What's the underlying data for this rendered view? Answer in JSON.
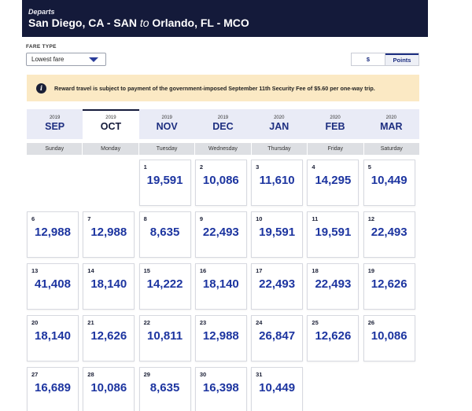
{
  "header": {
    "departs_label": "Departs",
    "origin": "San Diego, CA - SAN",
    "to": "to",
    "destination": "Orlando, FL - MCO"
  },
  "fare_type": {
    "label": "FARE TYPE",
    "selected": "Lowest fare"
  },
  "currency_toggle": {
    "dollars": "$",
    "points": "Points",
    "active": "Points"
  },
  "notice": {
    "icon": "info-icon",
    "text": "Reward travel is subject to payment of the government-imposed September 11th Security Fee of $5.60 per one-way trip."
  },
  "months": [
    {
      "year": "2019",
      "month": "SEP"
    },
    {
      "year": "2019",
      "month": "OCT"
    },
    {
      "year": "2019",
      "month": "NOV"
    },
    {
      "year": "2019",
      "month": "DEC"
    },
    {
      "year": "2020",
      "month": "JAN"
    },
    {
      "year": "2020",
      "month": "FEB"
    },
    {
      "year": "2020",
      "month": "MAR"
    }
  ],
  "active_month": "OCT",
  "weekdays": [
    "Sunday",
    "Monday",
    "Tuesday",
    "Wednesday",
    "Thursday",
    "Friday",
    "Saturday"
  ],
  "weeks": [
    [
      null,
      null,
      {
        "day": "1",
        "points": "19,591"
      },
      {
        "day": "2",
        "points": "10,086"
      },
      {
        "day": "3",
        "points": "11,610"
      },
      {
        "day": "4",
        "points": "14,295"
      },
      {
        "day": "5",
        "points": "10,449"
      }
    ],
    [
      {
        "day": "6",
        "points": "12,988"
      },
      {
        "day": "7",
        "points": "12,988"
      },
      {
        "day": "8",
        "points": "8,635"
      },
      {
        "day": "9",
        "points": "22,493"
      },
      {
        "day": "10",
        "points": "19,591"
      },
      {
        "day": "11",
        "points": "19,591"
      },
      {
        "day": "12",
        "points": "22,493"
      }
    ],
    [
      {
        "day": "13",
        "points": "41,408"
      },
      {
        "day": "14",
        "points": "18,140"
      },
      {
        "day": "15",
        "points": "14,222"
      },
      {
        "day": "16",
        "points": "18,140"
      },
      {
        "day": "17",
        "points": "22,493"
      },
      {
        "day": "18",
        "points": "22,493"
      },
      {
        "day": "19",
        "points": "12,626"
      }
    ],
    [
      {
        "day": "20",
        "points": "18,140"
      },
      {
        "day": "21",
        "points": "12,626"
      },
      {
        "day": "22",
        "points": "10,811"
      },
      {
        "day": "23",
        "points": "12,988"
      },
      {
        "day": "24",
        "points": "26,847"
      },
      {
        "day": "25",
        "points": "12,626"
      },
      {
        "day": "26",
        "points": "10,086"
      }
    ],
    [
      {
        "day": "27",
        "points": "16,689"
      },
      {
        "day": "28",
        "points": "10,086"
      },
      {
        "day": "29",
        "points": "8,635"
      },
      {
        "day": "30",
        "points": "16,398"
      },
      {
        "day": "31",
        "points": "10,449"
      },
      null,
      null
    ]
  ]
}
